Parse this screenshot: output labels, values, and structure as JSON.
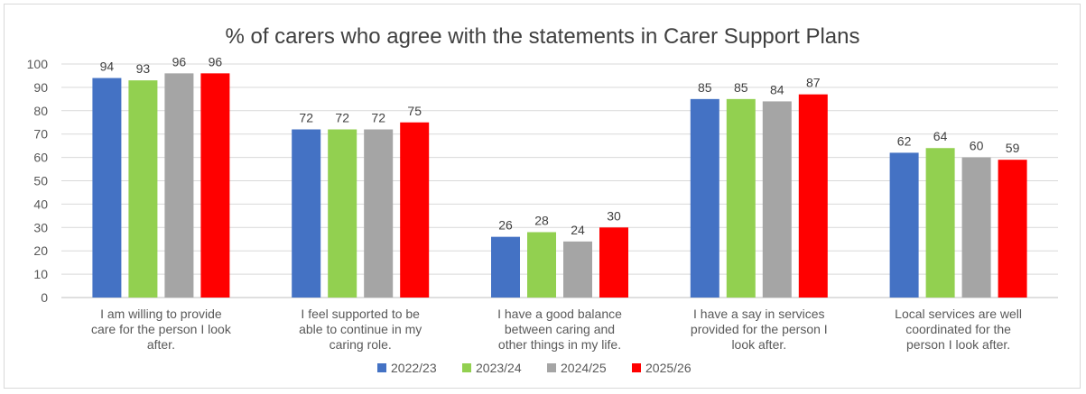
{
  "chart_data": {
    "type": "bar",
    "title": "% of carers who agree with the statements in Carer Support Plans",
    "xlabel": "",
    "ylabel": "",
    "ylim": [
      0,
      100
    ],
    "yticks": [
      "0",
      "10",
      "20",
      "30",
      "40",
      "50",
      "60",
      "70",
      "80",
      "90",
      "100"
    ],
    "grid": true,
    "legend_position": "bottom",
    "categories": [
      [
        "I am willing to provide",
        "care for the person I look",
        "after."
      ],
      [
        "I feel supported to be",
        "able to continue in my",
        "caring role."
      ],
      [
        "I have a good balance",
        "between caring and",
        "other things in my life."
      ],
      [
        "I have a say in services",
        "provided for the person I",
        "look after."
      ],
      [
        "Local services are well",
        "coordinated for the",
        "person I look after."
      ]
    ],
    "series": [
      {
        "name": "2022/23",
        "color": "#4472c4",
        "values": [
          94,
          72,
          26,
          85,
          62
        ]
      },
      {
        "name": "2023/24",
        "color": "#92d050",
        "values": [
          93,
          72,
          28,
          85,
          64
        ]
      },
      {
        "name": "2024/25",
        "color": "#a5a5a5",
        "values": [
          96,
          72,
          24,
          84,
          60
        ]
      },
      {
        "name": "2025/26",
        "color": "#ff0000",
        "values": [
          96,
          75,
          30,
          87,
          59
        ]
      }
    ]
  }
}
